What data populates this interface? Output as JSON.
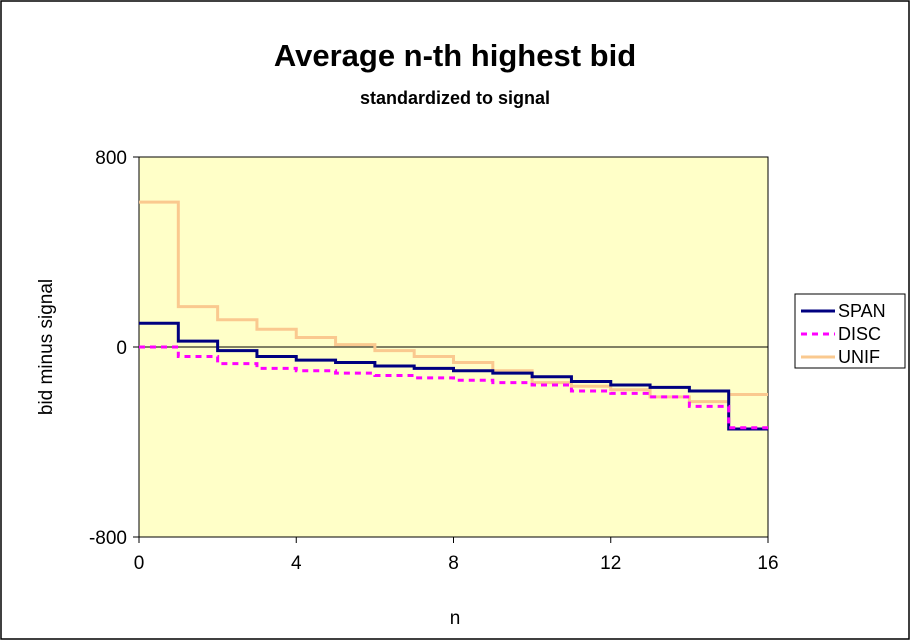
{
  "chart_data": {
    "type": "line",
    "title": "Average n-th highest bid",
    "subtitle": "standardized to signal",
    "xlabel": "n",
    "ylabel": "bid minus signal",
    "xlim": [
      0,
      16
    ],
    "ylim": [
      -800,
      800
    ],
    "x_ticks": [
      0,
      4,
      8,
      12,
      16
    ],
    "y_ticks": [
      -800,
      0,
      800
    ],
    "grid": false,
    "reference_line": 0,
    "legend_position": "right",
    "step": true,
    "series": [
      {
        "name": "SPAN",
        "color": "#000080",
        "values": [
          100,
          25,
          -15,
          -40,
          -55,
          -65,
          -80,
          -90,
          -100,
          -110,
          -125,
          -145,
          -160,
          -170,
          -185,
          -345
        ]
      },
      {
        "name": "DISC",
        "color": "#ff00ff",
        "values": [
          0,
          -40,
          -70,
          -90,
          -100,
          -110,
          -120,
          -130,
          -140,
          -150,
          -160,
          -185,
          -195,
          -210,
          -250,
          -340
        ]
      },
      {
        "name": "UNIF",
        "color": "#fac98f",
        "values": [
          610,
          170,
          115,
          75,
          40,
          10,
          -15,
          -40,
          -65,
          -100,
          -150,
          -165,
          -180,
          -210,
          -230,
          -200
        ]
      }
    ]
  },
  "colors": {
    "plot_background": "#ffffc8",
    "page_background": "#ffffff"
  }
}
